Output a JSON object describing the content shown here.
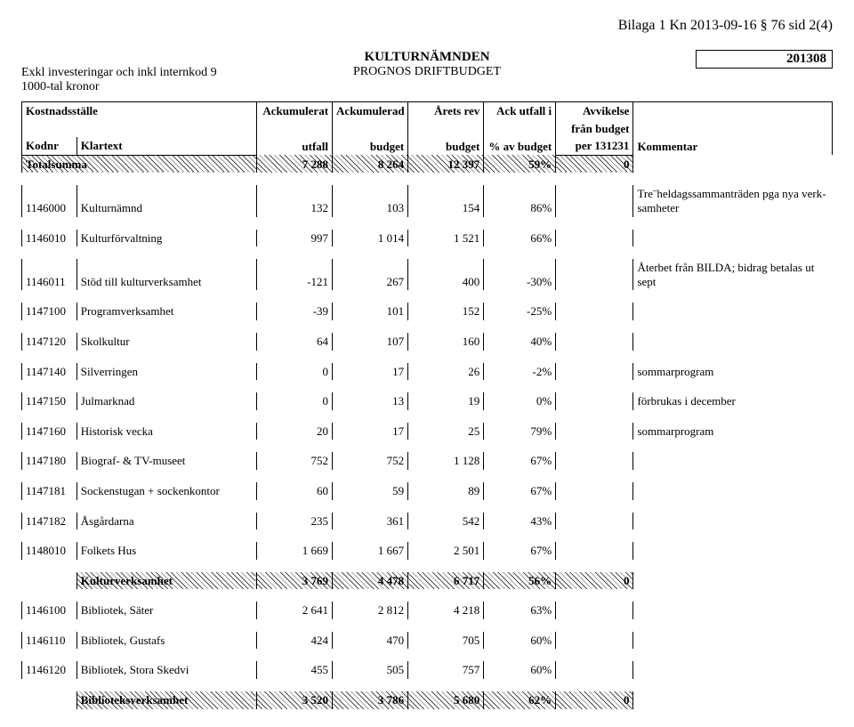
{
  "page_header": "Bilaga 1 Kn 2013-09-16 § 76 sid 2(4)",
  "title": "KULTURNÄMNDEN",
  "subtitle": "PROGNOS DRIFTBUDGET",
  "period": "201308",
  "meta1": "Exkl investeringar och inkl internkod 9",
  "meta2": "1000-tal kronor",
  "head": {
    "kostnadsstalle": "Kostnadsställe",
    "kodnr": "Kodnr",
    "klartext": "Klartext",
    "ack_utfall1": "Ackumulerat",
    "ack_utfall2": "utfall",
    "ack_budget1": "Ackumulerad",
    "ack_budget2": "budget",
    "arets1": "Årets rev",
    "arets2": "budget",
    "ack_pct1": "Ack utfall i",
    "ack_pct2": "% av budget",
    "avv1": "Avvikelse",
    "avv2": "från budget",
    "avv3": "per 131231",
    "kommentar": "Kommentar"
  },
  "total": {
    "label": "Totalsumma",
    "c1": "7 288",
    "c2": "8 264",
    "c3": "12 397",
    "c4": "59%",
    "c5": "0"
  },
  "rows1": [
    {
      "k": "1146000",
      "t": "Kulturnämnd",
      "c1": "132",
      "c2": "103",
      "c3": "154",
      "c4": "86%",
      "c5": "",
      "komm": "Tre¨heldagssammanträden pga nya verk-samheter"
    },
    {
      "k": "1146010",
      "t": "Kulturförvaltning",
      "c1": "997",
      "c2": "1 014",
      "c3": "1 521",
      "c4": "66%",
      "c5": "",
      "komm": ""
    },
    {
      "k": "1146011",
      "t": "Stöd till kulturverksamhet",
      "c1": "-121",
      "c2": "267",
      "c3": "400",
      "c4": "-30%",
      "c5": "",
      "komm": "Återbet från BILDA; bidrag betalas ut sept"
    },
    {
      "k": "1147100",
      "t": "Programverksamhet",
      "c1": "-39",
      "c2": "101",
      "c3": "152",
      "c4": "-25%",
      "c5": "",
      "komm": ""
    },
    {
      "k": "1147120",
      "t": "Skolkultur",
      "c1": "64",
      "c2": "107",
      "c3": "160",
      "c4": "40%",
      "c5": "",
      "komm": ""
    },
    {
      "k": "1147140",
      "t": "Silverringen",
      "c1": "0",
      "c2": "17",
      "c3": "26",
      "c4": "-2%",
      "c5": "",
      "komm": "sommarprogram"
    },
    {
      "k": "1147150",
      "t": "Julmarknad",
      "c1": "0",
      "c2": "13",
      "c3": "19",
      "c4": "0%",
      "c5": "",
      "komm": "förbrukas i december"
    },
    {
      "k": "1147160",
      "t": "Historisk vecka",
      "c1": "20",
      "c2": "17",
      "c3": "25",
      "c4": "79%",
      "c5": "",
      "komm": "sommarprogram"
    },
    {
      "k": "1147180",
      "t": "Biograf- & TV-museet",
      "c1": "752",
      "c2": "752",
      "c3": "1 128",
      "c4": "67%",
      "c5": "",
      "komm": ""
    },
    {
      "k": "1147181",
      "t": "Sockenstugan + sockenkontor",
      "c1": "60",
      "c2": "59",
      "c3": "89",
      "c4": "67%",
      "c5": "",
      "komm": ""
    },
    {
      "k": "1147182",
      "t": "Åsgårdarna",
      "c1": "235",
      "c2": "361",
      "c3": "542",
      "c4": "43%",
      "c5": "",
      "komm": ""
    },
    {
      "k": "1148010",
      "t": "Folkets Hus",
      "c1": "1 669",
      "c2": "1 667",
      "c3": "2 501",
      "c4": "67%",
      "c5": "",
      "komm": ""
    }
  ],
  "sub1": {
    "label": "Kulturverksamhet",
    "c1": "3 769",
    "c2": "4 478",
    "c3": "6 717",
    "c4": "56%",
    "c5": "0"
  },
  "rows2": [
    {
      "k": "1146100",
      "t": "Bibliotek, Säter",
      "c1": "2 641",
      "c2": "2 812",
      "c3": "4 218",
      "c4": "63%",
      "c5": "",
      "komm": ""
    },
    {
      "k": "1146110",
      "t": "Bibliotek, Gustafs",
      "c1": "424",
      "c2": "470",
      "c3": "705",
      "c4": "60%",
      "c5": "",
      "komm": ""
    },
    {
      "k": "1146120",
      "t": "Bibliotek, Stora Skedvi",
      "c1": "455",
      "c2": "505",
      "c3": "757",
      "c4": "60%",
      "c5": "",
      "komm": ""
    }
  ],
  "sub2": {
    "label": "Biblioteksverksamhet",
    "c1": "3 520",
    "c2": "3 786",
    "c3": "5 680",
    "c4": "62%",
    "c5": "0"
  }
}
